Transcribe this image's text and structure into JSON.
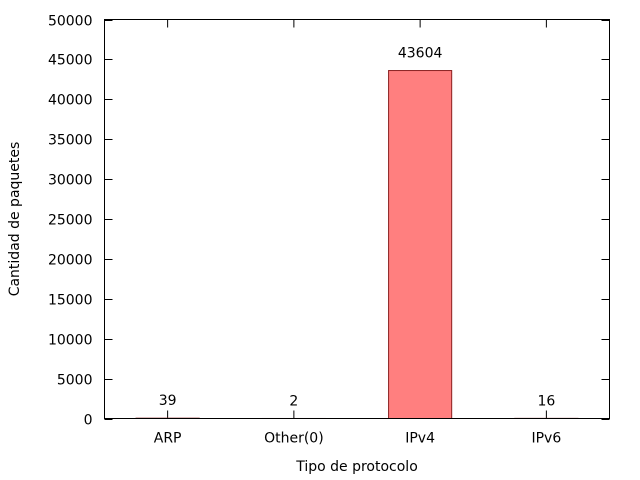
{
  "chart_data": {
    "type": "bar",
    "categories": [
      "ARP",
      "Other(0)",
      "IPv4",
      "IPv6"
    ],
    "values": [
      39,
      2,
      43604,
      16
    ],
    "data_labels": [
      "39",
      "2",
      "43604",
      "16"
    ],
    "xlabel": "Tipo de protocolo",
    "ylabel": "Cantidad de paquetes",
    "ylim": [
      0,
      50000
    ],
    "yticks": [
      0,
      5000,
      10000,
      15000,
      20000,
      25000,
      30000,
      35000,
      40000,
      45000,
      50000
    ],
    "ytick_labels": [
      "0",
      "5000",
      "10000",
      "15000",
      "20000",
      "25000",
      "30000",
      "35000",
      "40000",
      "45000",
      "50000"
    ],
    "grid": false,
    "bar_color": "#ff7f7f",
    "bar_edge_color": "#8b2020"
  }
}
